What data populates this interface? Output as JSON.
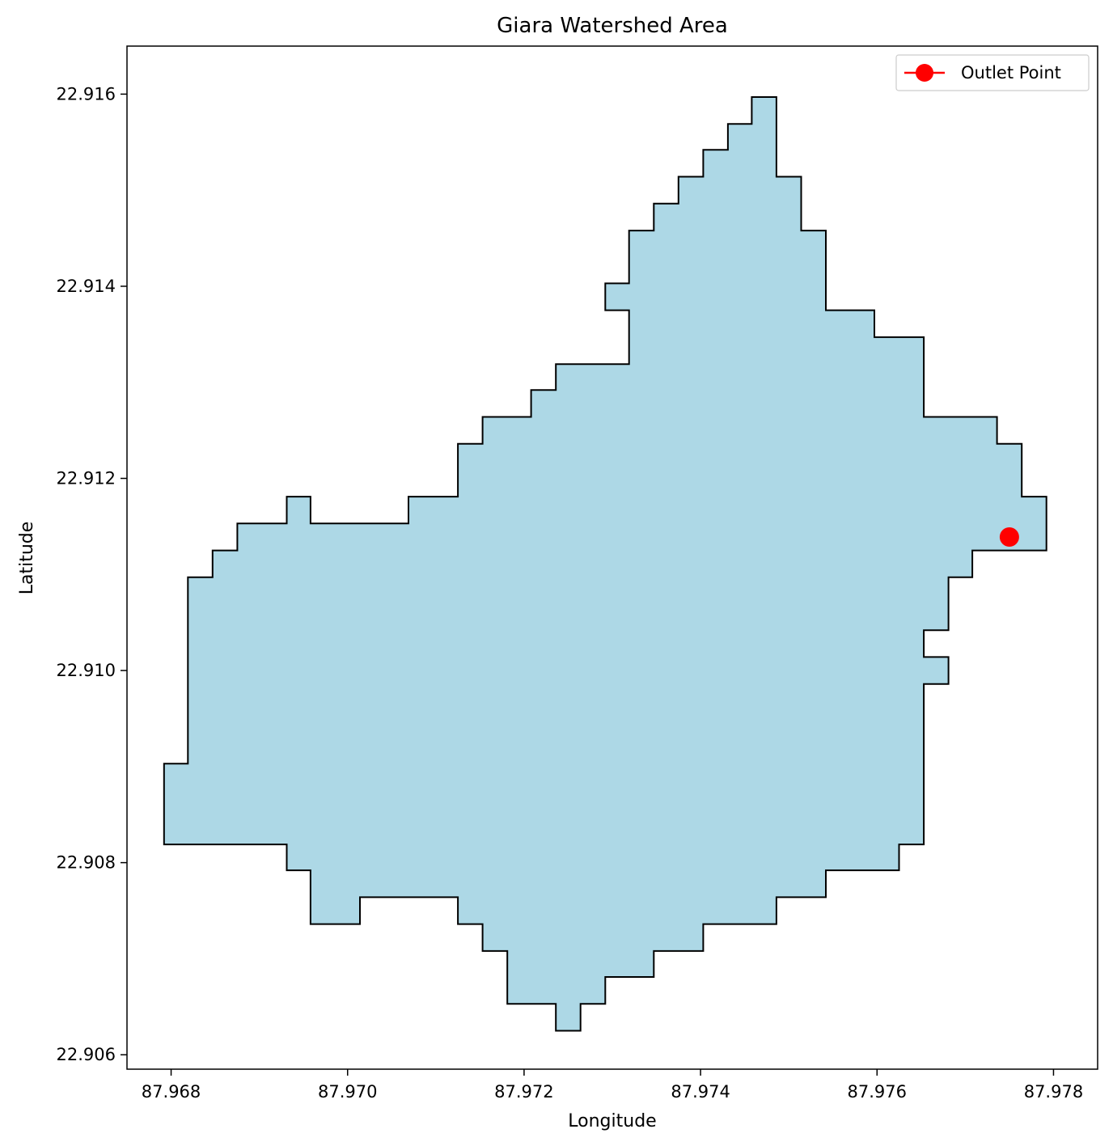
{
  "chart_data": {
    "type": "map",
    "title": "Giara Watershed Area",
    "xlabel": "Longitude",
    "ylabel": "Latitude",
    "xlim": [
      87.9675,
      87.9785
    ],
    "ylim": [
      22.90585,
      22.9165
    ],
    "xticks": [
      87.968,
      87.97,
      87.972,
      87.974,
      87.976,
      87.978
    ],
    "xtick_labels": [
      "87.968",
      "87.970",
      "87.972",
      "87.974",
      "87.976",
      "87.978"
    ],
    "yticks": [
      22.906,
      22.908,
      22.91,
      22.912,
      22.914,
      22.916
    ],
    "ytick_labels": [
      "22.906",
      "22.908",
      "22.910",
      "22.912",
      "22.914",
      "22.916"
    ],
    "grid": false,
    "legend_position": "top-right",
    "series": [
      {
        "name": "watershed boundary",
        "kind": "polygon",
        "fill_color": "#add8e6",
        "edge_color": "#000000",
        "boundary": [
          [
            87.96792,
            22.90903
          ],
          [
            87.96819,
            22.90903
          ],
          [
            87.96819,
            22.91097
          ],
          [
            87.96847,
            22.91097
          ],
          [
            87.96847,
            22.91125
          ],
          [
            87.96875,
            22.91125
          ],
          [
            87.96875,
            22.91153
          ],
          [
            87.96931,
            22.91153
          ],
          [
            87.96931,
            22.91181
          ],
          [
            87.96958,
            22.91181
          ],
          [
            87.96958,
            22.91153
          ],
          [
            87.97069,
            22.91153
          ],
          [
            87.97069,
            22.91181
          ],
          [
            87.97125,
            22.91181
          ],
          [
            87.97125,
            22.91236
          ],
          [
            87.97153,
            22.91236
          ],
          [
            87.97153,
            22.91264
          ],
          [
            87.97208,
            22.91264
          ],
          [
            87.97208,
            22.91292
          ],
          [
            87.97236,
            22.91292
          ],
          [
            87.97236,
            22.91319
          ],
          [
            87.97319,
            22.91319
          ],
          [
            87.97319,
            22.91375
          ],
          [
            87.97292,
            22.91375
          ],
          [
            87.97292,
            22.91403
          ],
          [
            87.97319,
            22.91403
          ],
          [
            87.97319,
            22.91458
          ],
          [
            87.97347,
            22.91458
          ],
          [
            87.97347,
            22.91486
          ],
          [
            87.97375,
            22.91486
          ],
          [
            87.97375,
            22.91514
          ],
          [
            87.97403,
            22.91514
          ],
          [
            87.97403,
            22.91542
          ],
          [
            87.97431,
            22.91542
          ],
          [
            87.97431,
            22.91569
          ],
          [
            87.97458,
            22.91569
          ],
          [
            87.97458,
            22.91597
          ],
          [
            87.97486,
            22.91597
          ],
          [
            87.97486,
            22.91514
          ],
          [
            87.97514,
            22.91514
          ],
          [
            87.97514,
            22.91458
          ],
          [
            87.97542,
            22.91458
          ],
          [
            87.97542,
            22.91375
          ],
          [
            87.97597,
            22.91375
          ],
          [
            87.97597,
            22.91347
          ],
          [
            87.97653,
            22.91347
          ],
          [
            87.97653,
            22.91264
          ],
          [
            87.97736,
            22.91264
          ],
          [
            87.97736,
            22.91236
          ],
          [
            87.97764,
            22.91236
          ],
          [
            87.97764,
            22.91181
          ],
          [
            87.97792,
            22.91181
          ],
          [
            87.97792,
            22.91125
          ],
          [
            87.97708,
            22.91125
          ],
          [
            87.97708,
            22.91097
          ],
          [
            87.97681,
            22.91097
          ],
          [
            87.97681,
            22.91042
          ],
          [
            87.97653,
            22.91042
          ],
          [
            87.97653,
            22.91014
          ],
          [
            87.97681,
            22.91014
          ],
          [
            87.97681,
            22.90986
          ],
          [
            87.97653,
            22.90986
          ],
          [
            87.97653,
            22.90819
          ],
          [
            87.97625,
            22.90819
          ],
          [
            87.97625,
            22.90792
          ],
          [
            87.97542,
            22.90792
          ],
          [
            87.97542,
            22.90764
          ],
          [
            87.97486,
            22.90764
          ],
          [
            87.97486,
            22.90736
          ],
          [
            87.97403,
            22.90736
          ],
          [
            87.97403,
            22.90708
          ],
          [
            87.97347,
            22.90708
          ],
          [
            87.97347,
            22.90681
          ],
          [
            87.97292,
            22.90681
          ],
          [
            87.97292,
            22.90653
          ],
          [
            87.97264,
            22.90653
          ],
          [
            87.97264,
            22.90625
          ],
          [
            87.97236,
            22.90625
          ],
          [
            87.97236,
            22.90653
          ],
          [
            87.97181,
            22.90653
          ],
          [
            87.97181,
            22.90708
          ],
          [
            87.97153,
            22.90708
          ],
          [
            87.97153,
            22.90736
          ],
          [
            87.97125,
            22.90736
          ],
          [
            87.97125,
            22.90764
          ],
          [
            87.97014,
            22.90764
          ],
          [
            87.97014,
            22.90736
          ],
          [
            87.96958,
            22.90736
          ],
          [
            87.96958,
            22.90792
          ],
          [
            87.96931,
            22.90792
          ],
          [
            87.96931,
            22.90819
          ],
          [
            87.96792,
            22.90819
          ]
        ]
      },
      {
        "name": "Outlet Point",
        "kind": "point",
        "color": "#ff0000",
        "points": [
          [
            87.9775,
            22.91139
          ]
        ]
      }
    ]
  },
  "legend": {
    "items": [
      {
        "label": "Outlet Point",
        "color": "#ff0000"
      }
    ]
  }
}
